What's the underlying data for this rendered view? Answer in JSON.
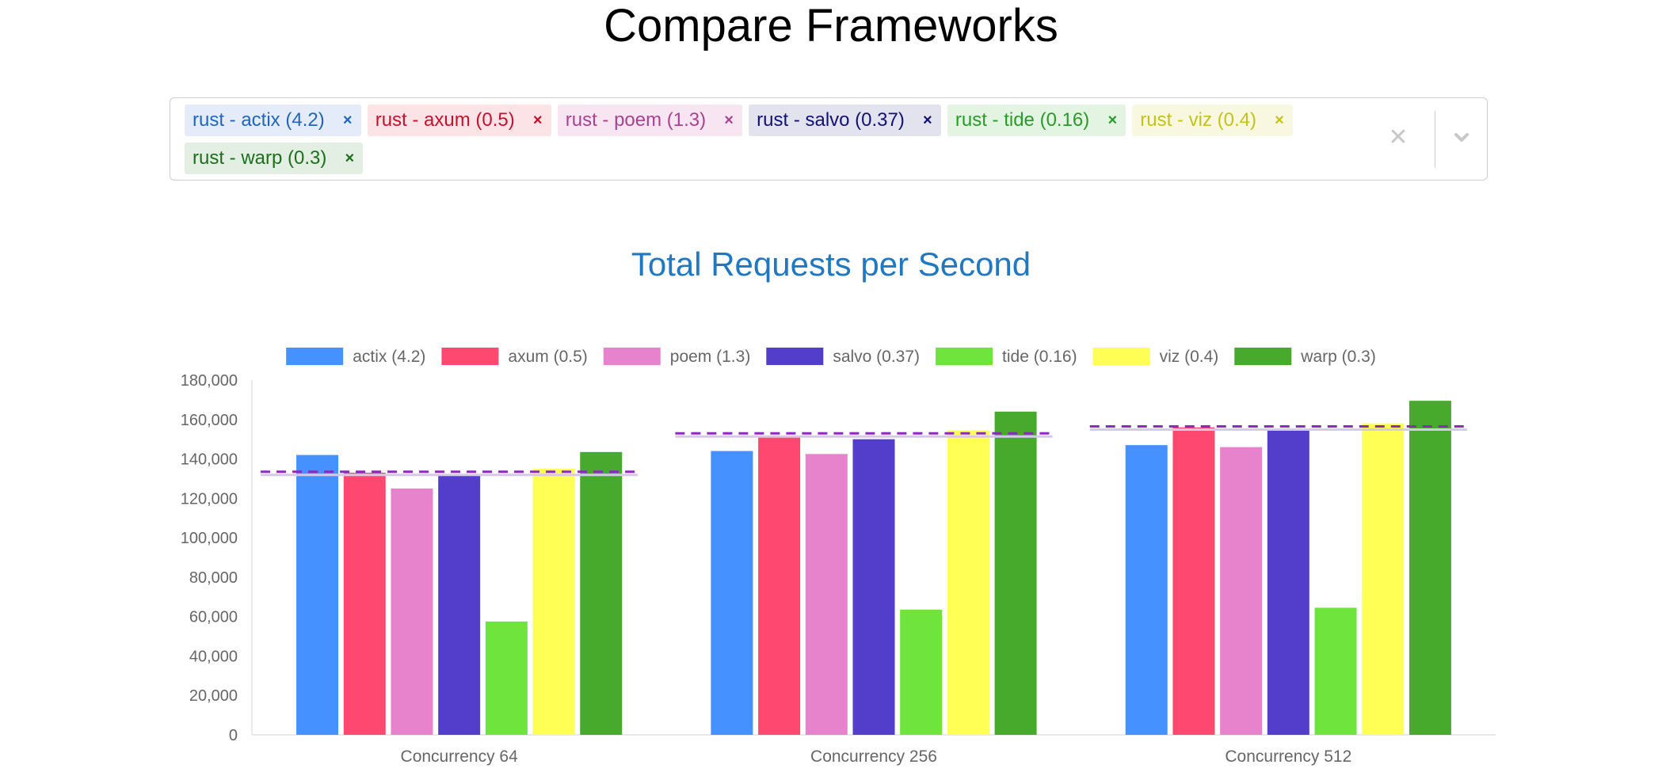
{
  "page": {
    "title": "Compare Frameworks"
  },
  "selector": {
    "tags": [
      {
        "label": "rust - actix (4.2)",
        "color": "#1f66c1",
        "bg": "#e3ecf8"
      },
      {
        "label": "rust - axum (0.5)",
        "color": "#c8102e",
        "bg": "#fbe3e6"
      },
      {
        "label": "rust - poem (1.3)",
        "color": "#a8448f",
        "bg": "#f8e5f2"
      },
      {
        "label": "rust - salvo (0.37)",
        "color": "#111177",
        "bg": "#e3e3ef"
      },
      {
        "label": "rust - tide (0.16)",
        "color": "#2a9a2a",
        "bg": "#e3f4e3"
      },
      {
        "label": "rust - viz (0.4)",
        "color": "#c3c31a",
        "bg": "#f8f8e1"
      },
      {
        "label": "rust - warp (0.3)",
        "color": "#1e6e1e",
        "bg": "#e2efe2"
      }
    ],
    "remove_glyph": "×",
    "clear_glyph": "✕",
    "dropdown_icon": "chevron-down-icon"
  },
  "chart_data": {
    "type": "bar",
    "title": "Total Requests per Second",
    "xlabel": "",
    "ylabel": "",
    "ylim": [
      0,
      180000
    ],
    "yticks": [
      0,
      20000,
      40000,
      60000,
      80000,
      100000,
      120000,
      140000,
      160000,
      180000
    ],
    "ytick_labels": [
      "0",
      "20,000",
      "40,000",
      "60,000",
      "80,000",
      "100,000",
      "120,000",
      "140,000",
      "160,000",
      "180,000"
    ],
    "categories": [
      "Concurrency 64",
      "Concurrency 256",
      "Concurrency 512"
    ],
    "legend_position": "top",
    "series": [
      {
        "name": "actix (4.2)",
        "color": "#4491ff",
        "values": [
          142000,
          144000,
          147000
        ]
      },
      {
        "name": "axum (0.5)",
        "color": "#ff4870",
        "values": [
          133000,
          151000,
          156000
        ]
      },
      {
        "name": "poem (1.3)",
        "color": "#e683cc",
        "values": [
          125000,
          142500,
          146000
        ]
      },
      {
        "name": "salvo (0.37)",
        "color": "#533ecb",
        "values": [
          132000,
          150000,
          155000
        ]
      },
      {
        "name": "tide (0.16)",
        "color": "#6ee43c",
        "values": [
          57500,
          63500,
          64500
        ]
      },
      {
        "name": "viz (0.4)",
        "color": "#ffff55",
        "values": [
          135000,
          154500,
          158000
        ]
      },
      {
        "name": "warp (0.3)",
        "color": "#48aa2c",
        "values": [
          143500,
          164000,
          169500
        ]
      }
    ],
    "average_lines": [
      133500,
      153000,
      156500
    ],
    "average_line_color": "#8a2bbd"
  }
}
